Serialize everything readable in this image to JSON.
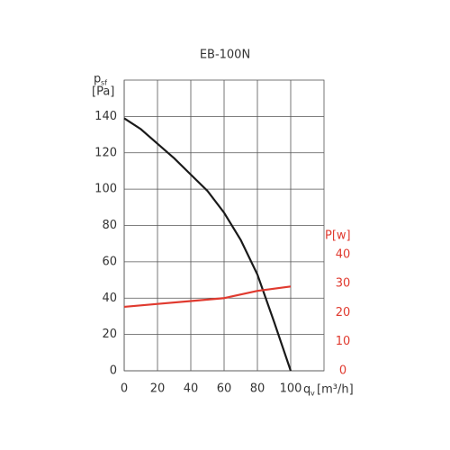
{
  "chart_data": {
    "type": "line",
    "title": "EB-100N",
    "y_label": "p",
    "y_label_sub": "sf",
    "y_label_unit": "[Pa]",
    "x_label": "q",
    "x_label_sub": "v",
    "x_label_unit": "[m³/h]",
    "y2_label": "P[w]",
    "xlim": [
      0,
      120
    ],
    "xticks": [
      0,
      20,
      40,
      60,
      80,
      100
    ],
    "ylim": [
      0,
      160
    ],
    "yticks": [
      0,
      20,
      40,
      60,
      80,
      100,
      120,
      140
    ],
    "y2lim": [
      0,
      100
    ],
    "y2ticks": [
      0,
      10,
      20,
      30,
      40
    ],
    "grid": true,
    "series": [
      {
        "name": "psf",
        "color": "#1a1a1a",
        "x": [
          0,
          10,
          20,
          30,
          40,
          50,
          60,
          70,
          80,
          90,
          100
        ],
        "values": [
          139,
          133,
          125,
          117,
          108,
          99,
          87,
          72,
          53,
          27,
          0
        ]
      },
      {
        "name": "P",
        "color": "#e03a2f",
        "axis": "y2",
        "x": [
          0,
          20,
          40,
          60,
          80,
          100
        ],
        "values": [
          22,
          23,
          24,
          25,
          27.5,
          29
        ]
      }
    ]
  }
}
